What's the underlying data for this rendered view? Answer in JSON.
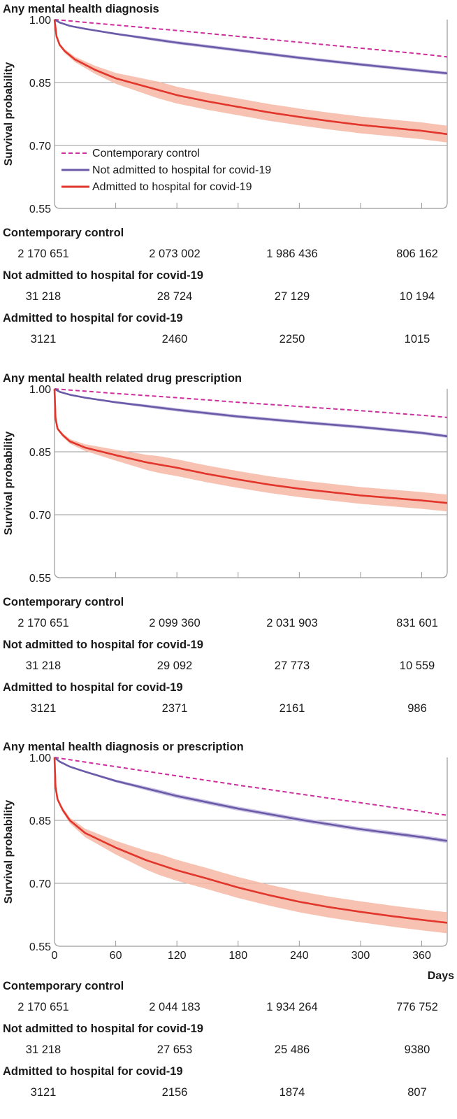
{
  "colors": {
    "control": "#cc2e9e",
    "not_admitted": "#6a5aa8",
    "not_admitted_band": "#c5bde2",
    "admitted": "#e2362d",
    "admitted_band": "#f6b7a3",
    "grid": "#9a9a9a",
    "axis": "#9a9a9a"
  },
  "shared": {
    "ylabel": "Survival probability",
    "yticks": [
      "0.55",
      "0.70",
      "0.85",
      "1.00"
    ],
    "xticks": [
      "0",
      "60",
      "120",
      "180",
      "240",
      "300",
      "360"
    ],
    "xunit": "Days"
  },
  "legend": {
    "items": [
      {
        "label": "Contemporary control",
        "style": "dashed",
        "color_key": "control"
      },
      {
        "label": "Not admitted to hospital for covid-19",
        "style": "solid",
        "color_key": "not_admitted"
      },
      {
        "label": "Admitted to hospital for covid-19",
        "style": "solid",
        "color_key": "admitted"
      }
    ]
  },
  "chart_data": [
    {
      "type": "line",
      "title": "Any mental health diagnosis",
      "ylabel": "Survival probability",
      "ylim": [
        0.55,
        1.0
      ],
      "xlim": [
        0,
        385
      ],
      "xlabel": "",
      "grid": "horizontal",
      "legend_position": "bottom-left",
      "x_ticks_shown": false,
      "series": [
        {
          "name": "Contemporary control",
          "style": "dashed",
          "x": [
            0,
            60,
            120,
            180,
            240,
            300,
            360,
            385
          ],
          "y": [
            1.0,
            0.987,
            0.974,
            0.96,
            0.946,
            0.932,
            0.918,
            0.911
          ]
        },
        {
          "name": "Not admitted to hospital for covid-19",
          "style": "solid",
          "x": [
            0,
            5,
            15,
            30,
            60,
            120,
            180,
            240,
            300,
            360,
            385
          ],
          "y": [
            1.0,
            0.993,
            0.985,
            0.978,
            0.966,
            0.945,
            0.927,
            0.909,
            0.893,
            0.878,
            0.872
          ],
          "ci": 0.004
        },
        {
          "name": "Admitted to hospital for covid-19",
          "style": "solid",
          "x": [
            0,
            2,
            5,
            10,
            20,
            40,
            60,
            90,
            120,
            150,
            180,
            210,
            240,
            270,
            300,
            330,
            360,
            385
          ],
          "y": [
            1.0,
            0.96,
            0.94,
            0.925,
            0.905,
            0.88,
            0.86,
            0.84,
            0.82,
            0.805,
            0.792,
            0.779,
            0.768,
            0.758,
            0.749,
            0.742,
            0.735,
            0.727
          ],
          "ci": 0.02
        }
      ]
    },
    {
      "type": "line",
      "title": "Any mental health related drug prescription",
      "ylabel": "Survival probability",
      "ylim": [
        0.55,
        1.0
      ],
      "xlim": [
        0,
        385
      ],
      "xlabel": "",
      "grid": "horizontal",
      "x_ticks_shown": false,
      "series": [
        {
          "name": "Contemporary control",
          "style": "dashed",
          "x": [
            0,
            60,
            120,
            180,
            240,
            300,
            360,
            385
          ],
          "y": [
            1.0,
            0.989,
            0.979,
            0.968,
            0.958,
            0.948,
            0.937,
            0.932
          ]
        },
        {
          "name": "Not admitted to hospital for covid-19",
          "style": "solid",
          "x": [
            0,
            5,
            15,
            30,
            60,
            120,
            180,
            240,
            300,
            360,
            385
          ],
          "y": [
            1.0,
            0.993,
            0.986,
            0.979,
            0.968,
            0.95,
            0.934,
            0.921,
            0.909,
            0.895,
            0.887
          ],
          "ci": 0.004
        },
        {
          "name": "Admitted to hospital for covid-19",
          "style": "solid",
          "x": [
            0,
            1,
            3,
            8,
            15,
            30,
            60,
            90,
            120,
            150,
            180,
            210,
            240,
            270,
            300,
            330,
            360,
            385
          ],
          "y": [
            1.0,
            0.93,
            0.905,
            0.89,
            0.875,
            0.86,
            0.842,
            0.825,
            0.812,
            0.797,
            0.784,
            0.772,
            0.762,
            0.754,
            0.746,
            0.74,
            0.734,
            0.728
          ],
          "ci": 0.02
        }
      ]
    },
    {
      "type": "line",
      "title": "Any mental health diagnosis or prescription",
      "ylabel": "Survival probability",
      "ylim": [
        0.55,
        1.0
      ],
      "xlim": [
        0,
        385
      ],
      "xlabel": "Days",
      "grid": "horizontal",
      "x_ticks_shown": true,
      "series": [
        {
          "name": "Contemporary control",
          "style": "dashed",
          "x": [
            0,
            60,
            120,
            180,
            240,
            300,
            360,
            385
          ],
          "y": [
            1.0,
            0.978,
            0.956,
            0.934,
            0.913,
            0.892,
            0.871,
            0.862
          ]
        },
        {
          "name": "Not admitted to hospital for covid-19",
          "style": "solid",
          "x": [
            0,
            5,
            15,
            30,
            60,
            120,
            180,
            240,
            300,
            360,
            385
          ],
          "y": [
            1.0,
            0.99,
            0.978,
            0.966,
            0.944,
            0.908,
            0.878,
            0.852,
            0.829,
            0.81,
            0.801
          ],
          "ci": 0.005
        },
        {
          "name": "Admitted to hospital for covid-19",
          "style": "solid",
          "x": [
            0,
            1,
            3,
            8,
            15,
            30,
            60,
            90,
            120,
            150,
            180,
            210,
            240,
            270,
            300,
            330,
            360,
            385
          ],
          "y": [
            1.0,
            0.93,
            0.9,
            0.875,
            0.85,
            0.82,
            0.785,
            0.755,
            0.731,
            0.711,
            0.69,
            0.672,
            0.656,
            0.643,
            0.632,
            0.622,
            0.613,
            0.606
          ],
          "ci": 0.025
        }
      ]
    }
  ],
  "risk_tables": [
    {
      "rows": [
        {
          "group": "Contemporary control",
          "values": [
            "2 170 651",
            "2 073 002",
            "1 986 436",
            "806 162"
          ]
        },
        {
          "group": "Not admitted to hospital for covid-19",
          "values": [
            "31 218",
            "28 724",
            "27 129",
            "10 194"
          ]
        },
        {
          "group": "Admitted to hospital for covid-19",
          "values": [
            "3121",
            "2460",
            "2250",
            "1015"
          ]
        }
      ]
    },
    {
      "rows": [
        {
          "group": "Contemporary control",
          "values": [
            "2 170 651",
            "2 099 360",
            "2 031 903",
            "831 601"
          ]
        },
        {
          "group": "Not admitted to hospital for covid-19",
          "values": [
            "31 218",
            "29 092",
            "27 773",
            "10 559"
          ]
        },
        {
          "group": "Admitted to hospital for covid-19",
          "values": [
            "3121",
            "2371",
            "2161",
            "986"
          ]
        }
      ]
    },
    {
      "rows": [
        {
          "group": "Contemporary control",
          "values": [
            "2 170 651",
            "2 044 183",
            "1 934 264",
            "776 752"
          ]
        },
        {
          "group": "Not admitted to hospital for covid-19",
          "values": [
            "31 218",
            "27 653",
            "25 486",
            "9380"
          ]
        },
        {
          "group": "Admitted to hospital for covid-19",
          "values": [
            "3121",
            "2156",
            "1874",
            "807"
          ]
        }
      ]
    }
  ]
}
